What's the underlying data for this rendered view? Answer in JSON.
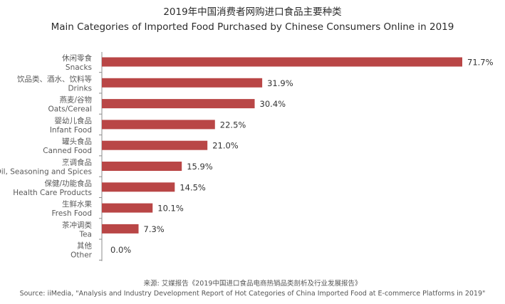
{
  "chart_data": {
    "type": "bar",
    "orientation": "horizontal",
    "title": "2019年中国消费者网购进口食品主要种类",
    "subtitle": "Main Categories of Imported Food Purchased by Chinese Consumers Online in 2019",
    "categories": [
      {
        "zh": "休闲零食",
        "en": "Snacks"
      },
      {
        "zh": "饮品类、酒水、饮料等",
        "en": "Drinks"
      },
      {
        "zh": "燕麦/谷物",
        "en": "Oats/Cereal"
      },
      {
        "zh": "婴幼儿食品",
        "en": "Infant Food"
      },
      {
        "zh": "罐头食品",
        "en": "Canned Food"
      },
      {
        "zh": "烹调食品",
        "en": "Oil, Seasoning and Spices"
      },
      {
        "zh": "保健/功能食品",
        "en": "Health Care Products"
      },
      {
        "zh": "生鲜水果",
        "en": "Fresh Food"
      },
      {
        "zh": "茶冲调类",
        "en": "Tea"
      },
      {
        "zh": "其他",
        "en": "Other"
      }
    ],
    "values": [
      71.7,
      31.9,
      30.4,
      22.5,
      21.0,
      15.9,
      14.5,
      10.1,
      7.3,
      0.0
    ],
    "value_labels": [
      "71.7%",
      "31.9%",
      "30.4%",
      "22.5%",
      "21.0%",
      "15.9%",
      "14.5%",
      "10.1%",
      "7.3%",
      "0.0%"
    ],
    "unit": "%",
    "xlim": [
      0,
      75
    ],
    "grid": false,
    "legend": "none",
    "bar_color": "#b94646"
  },
  "source": {
    "zh": "来源: 艾媒报告《2019中国进口食品电商热销品类剖析及行业发展报告》",
    "en": "Source: iiMedia, \"Analysis and Industry Development Report of Hot Categories of China Imported Food at E-commerce Platforms in 2019\""
  }
}
